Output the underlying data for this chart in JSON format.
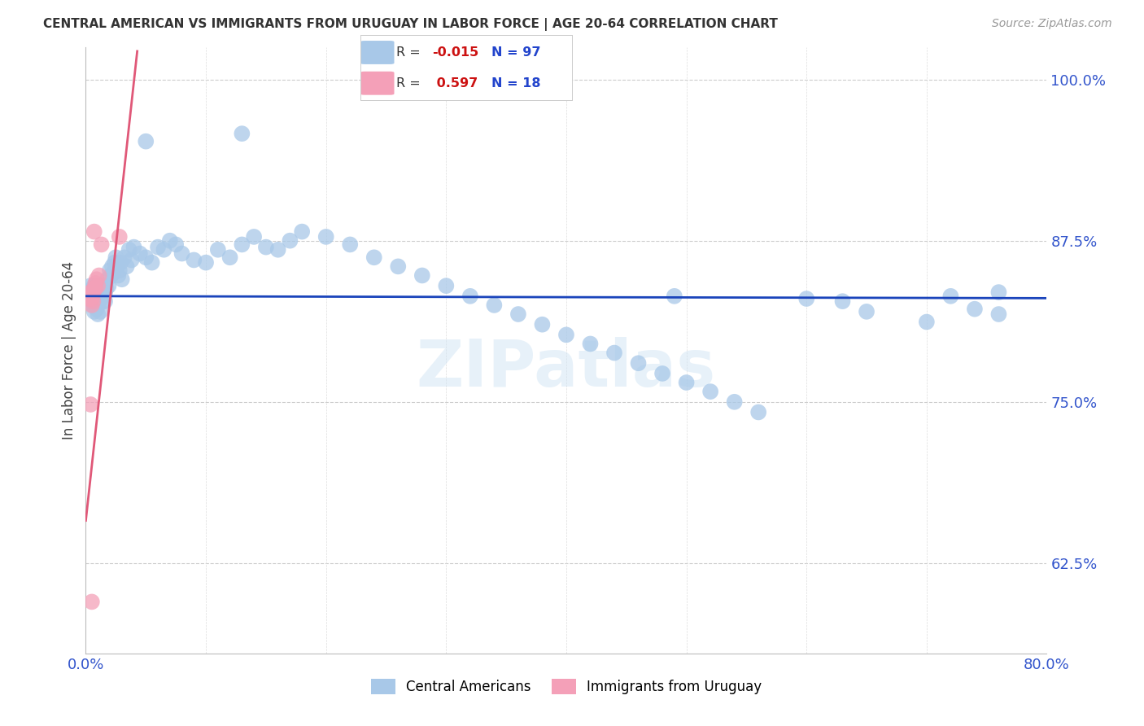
{
  "title": "CENTRAL AMERICAN VS IMMIGRANTS FROM URUGUAY IN LABOR FORCE | AGE 20-64 CORRELATION CHART",
  "source": "Source: ZipAtlas.com",
  "ylabel": "In Labor Force | Age 20-64",
  "xlim": [
    0.0,
    0.8
  ],
  "ylim": [
    0.555,
    1.025
  ],
  "yticks": [
    0.625,
    0.75,
    0.875,
    1.0
  ],
  "ytick_labels": [
    "62.5%",
    "75.0%",
    "87.5%",
    "100.0%"
  ],
  "xtick_positions": [
    0.0,
    0.8
  ],
  "xtick_labels": [
    "0.0%",
    "80.0%"
  ],
  "blue_color": "#a8c8e8",
  "pink_color": "#f4a0b8",
  "line_blue": "#1a44bb",
  "line_pink": "#e05878",
  "R_blue": -0.015,
  "N_blue": 97,
  "R_pink": 0.597,
  "N_pink": 18,
  "watermark": "ZIPatlas",
  "blue_line_y_intercept": 0.832,
  "blue_line_slope": -0.002,
  "pink_line_y_intercept": 0.658,
  "pink_line_slope": 8.5,
  "blue_x": [
    0.003,
    0.004,
    0.004,
    0.005,
    0.005,
    0.006,
    0.006,
    0.007,
    0.007,
    0.007,
    0.008,
    0.008,
    0.009,
    0.009,
    0.009,
    0.01,
    0.01,
    0.01,
    0.011,
    0.011,
    0.012,
    0.012,
    0.013,
    0.013,
    0.014,
    0.014,
    0.015,
    0.015,
    0.016,
    0.016,
    0.017,
    0.018,
    0.019,
    0.02,
    0.021,
    0.022,
    0.023,
    0.024,
    0.025,
    0.026,
    0.027,
    0.028,
    0.029,
    0.03,
    0.032,
    0.034,
    0.036,
    0.038,
    0.04,
    0.045,
    0.05,
    0.055,
    0.06,
    0.065,
    0.07,
    0.075,
    0.08,
    0.09,
    0.1,
    0.11,
    0.12,
    0.13,
    0.14,
    0.15,
    0.16,
    0.17,
    0.18,
    0.2,
    0.22,
    0.24,
    0.26,
    0.28,
    0.3,
    0.32,
    0.34,
    0.36,
    0.38,
    0.4,
    0.42,
    0.44,
    0.46,
    0.48,
    0.5,
    0.52,
    0.54,
    0.56,
    0.6,
    0.63,
    0.65,
    0.7,
    0.72,
    0.74,
    0.76,
    0.05,
    0.13,
    0.49,
    0.76
  ],
  "blue_y": [
    0.833,
    0.828,
    0.84,
    0.83,
    0.835,
    0.825,
    0.838,
    0.82,
    0.832,
    0.84,
    0.828,
    0.835,
    0.822,
    0.83,
    0.838,
    0.818,
    0.825,
    0.833,
    0.828,
    0.835,
    0.82,
    0.84,
    0.832,
    0.838,
    0.828,
    0.835,
    0.832,
    0.84,
    0.828,
    0.835,
    0.838,
    0.845,
    0.84,
    0.852,
    0.848,
    0.855,
    0.85,
    0.858,
    0.862,
    0.855,
    0.848,
    0.852,
    0.858,
    0.845,
    0.862,
    0.855,
    0.868,
    0.86,
    0.87,
    0.865,
    0.862,
    0.858,
    0.87,
    0.868,
    0.875,
    0.872,
    0.865,
    0.86,
    0.858,
    0.868,
    0.862,
    0.872,
    0.878,
    0.87,
    0.868,
    0.875,
    0.882,
    0.878,
    0.872,
    0.862,
    0.855,
    0.848,
    0.84,
    0.832,
    0.825,
    0.818,
    0.81,
    0.802,
    0.795,
    0.788,
    0.78,
    0.772,
    0.765,
    0.758,
    0.75,
    0.742,
    0.83,
    0.828,
    0.82,
    0.812,
    0.832,
    0.822,
    0.818,
    0.952,
    0.958,
    0.832,
    0.835
  ],
  "pink_x": [
    0.003,
    0.004,
    0.005,
    0.005,
    0.005,
    0.006,
    0.006,
    0.007,
    0.007,
    0.008,
    0.008,
    0.009,
    0.01,
    0.011,
    0.013,
    0.028,
    0.004,
    0.005
  ],
  "pink_y": [
    0.83,
    0.835,
    0.83,
    0.825,
    0.832,
    0.828,
    0.835,
    0.882,
    0.838,
    0.842,
    0.838,
    0.845,
    0.84,
    0.848,
    0.872,
    0.878,
    0.748,
    0.595
  ]
}
